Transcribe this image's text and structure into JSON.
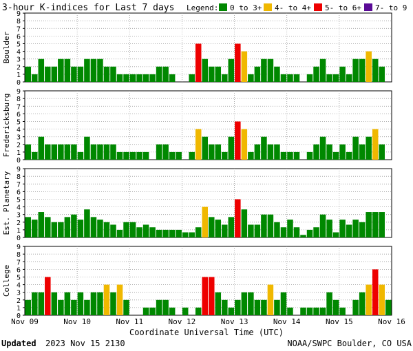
{
  "chart_data": {
    "type": "bar",
    "title": "3-hour K-indices for Last 7 days",
    "legend": {
      "label": "Legend:",
      "placement": "top-right",
      "entries": [
        {
          "label": "0 to 3+",
          "color": "#008800"
        },
        {
          "label": "4- to 4+",
          "color": "#f0b800"
        },
        {
          "label": "5- to 6+",
          "color": "#ee0000"
        },
        {
          "label": "7- to 9",
          "color": "#5a0a96"
        }
      ]
    },
    "ylim": [
      0,
      9
    ],
    "y_ticks": [
      "0",
      "1",
      "2",
      "3",
      "4",
      "5",
      "6",
      "7",
      "8",
      "9"
    ],
    "x_ticks": [
      "Nov 09",
      "Nov 10",
      "Nov 11",
      "Nov 12",
      "Nov 13",
      "Nov 14",
      "Nov 15",
      "Nov 16"
    ],
    "xlabel": "Coordinate Universal Time (UTC)",
    "grid": true,
    "bars_per_day": 8,
    "series": [
      {
        "name": "Boulder",
        "values": [
          2,
          1,
          3,
          2,
          2,
          3,
          3,
          2,
          2,
          3,
          3,
          3,
          2,
          2,
          1,
          1,
          1,
          1,
          1,
          1,
          2,
          2,
          1,
          0,
          0,
          1,
          5,
          3,
          2,
          2,
          1,
          3,
          5,
          4,
          1,
          2,
          3,
          3,
          2,
          1,
          1,
          1,
          0,
          1,
          2,
          3,
          1,
          1,
          2,
          1,
          3,
          3,
          4,
          3,
          2,
          0
        ]
      },
      {
        "name": "Fredericksburg",
        "values": [
          2,
          1,
          3,
          2,
          2,
          2,
          2,
          2,
          1,
          3,
          2,
          2,
          2,
          2,
          1,
          1,
          1,
          1,
          1,
          0,
          2,
          2,
          1,
          1,
          0,
          1,
          4,
          3,
          2,
          2,
          1,
          3,
          5,
          4,
          1,
          2,
          3,
          2,
          2,
          1,
          1,
          1,
          0,
          1,
          2,
          3,
          2,
          1,
          2,
          1,
          3,
          2,
          3,
          4,
          2,
          0
        ]
      },
      {
        "name": "Est. Planetary",
        "values": [
          2.67,
          2.33,
          3.33,
          2.67,
          2,
          2,
          2.67,
          3,
          2.33,
          3.67,
          2.67,
          2.33,
          2,
          1.67,
          1,
          2,
          2,
          1.33,
          1.67,
          1.33,
          1,
          1,
          1,
          1,
          0.67,
          0.67,
          1.33,
          4,
          2.67,
          2.33,
          1.67,
          2.67,
          5,
          3.67,
          1.67,
          1.67,
          3,
          3,
          2,
          1.33,
          2.33,
          1.33,
          0.33,
          1,
          1.33,
          3,
          2.33,
          0.67,
          2.33,
          1.67,
          2.33,
          2,
          3.33,
          3.33,
          3.33,
          0
        ]
      },
      {
        "name": "College",
        "values": [
          2,
          3,
          3,
          5,
          3,
          2,
          3,
          2,
          3,
          2,
          3,
          3,
          4,
          3,
          4,
          2,
          0,
          0,
          1,
          1,
          2,
          2,
          1,
          0,
          1,
          0,
          1,
          5,
          5,
          3,
          2,
          1,
          2,
          3,
          3,
          2,
          2,
          4,
          2,
          3,
          1,
          0,
          1,
          1,
          1,
          1,
          3,
          2,
          1,
          0,
          2,
          3,
          4,
          6,
          4,
          2
        ]
      }
    ]
  },
  "footer": {
    "updated_label": "Updated",
    "updated_time": "2023 Nov 15 2130",
    "source": "NOAA/SWPC Boulder, CO USA"
  }
}
